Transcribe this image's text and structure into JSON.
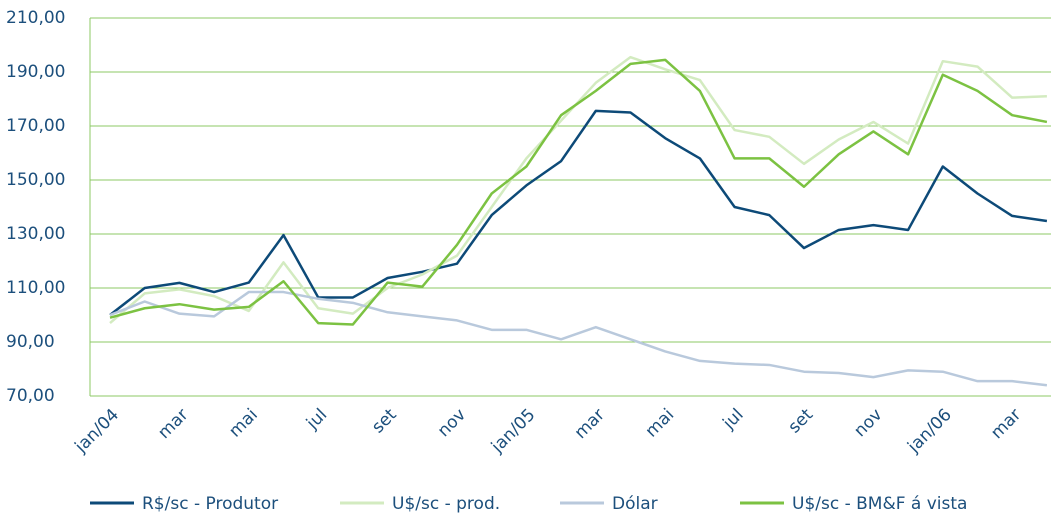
{
  "chart_data": {
    "type": "line",
    "categories": [
      "jan/04",
      null,
      "mar",
      null,
      "mai",
      null,
      "jul",
      null,
      "set",
      null,
      "nov",
      null,
      "jan/05",
      null,
      "mar",
      null,
      "mai",
      null,
      "jul",
      null,
      "set",
      null,
      "nov",
      null,
      "jan/06",
      null,
      "mar",
      null
    ],
    "series": [
      {
        "name": "R$/sc - Produtor",
        "color": "#0d4a78",
        "values": [
          100,
          110,
          111.9,
          108.5,
          112,
          129.6,
          106.5,
          106.5,
          113.7,
          116,
          119,
          137,
          148,
          157,
          175.6,
          175,
          165.5,
          158,
          140,
          137,
          124.8,
          131.5,
          133.3,
          131.5,
          155,
          145,
          136.7,
          134.8
        ]
      },
      {
        "name": "U$/sc - prod.",
        "color": "#d3ebc0",
        "values": [
          97,
          108,
          109.5,
          107,
          101.5,
          119.5,
          102.5,
          100.5,
          110,
          115,
          122,
          140,
          158,
          172,
          186,
          195.5,
          191,
          187,
          168.5,
          166,
          156,
          165,
          171.5,
          163.5,
          194,
          192,
          180.5,
          181
        ]
      },
      {
        "name": "Dólar",
        "color": "#b9c9dc",
        "values": [
          100,
          105,
          100.5,
          99.5,
          108.5,
          108.5,
          106,
          104.5,
          101,
          99.5,
          98,
          94.5,
          94.5,
          91,
          95.5,
          91,
          86.5,
          83,
          82,
          81.5,
          79,
          78.5,
          77,
          79.5,
          79,
          75.5,
          75.5,
          74
        ]
      },
      {
        "name": "U$/sc - BM&F á vista",
        "color": "#7cc242",
        "values": [
          99,
          102.5,
          104,
          102,
          103,
          112.5,
          97,
          96.5,
          112,
          110.5,
          126,
          145,
          155,
          174,
          183,
          193,
          194.5,
          183,
          158,
          158,
          147.5,
          159.5,
          168,
          159.5,
          189,
          183,
          174,
          171.5
        ]
      }
    ],
    "ylim": [
      70,
      210
    ],
    "yticks": [
      {
        "value": 70,
        "label": "70,00"
      },
      {
        "value": 90,
        "label": "90,00"
      },
      {
        "value": 110,
        "label": "110,00"
      },
      {
        "value": 130,
        "label": "130,00"
      },
      {
        "value": 150,
        "label": "150,00"
      },
      {
        "value": 170,
        "label": "170,00"
      },
      {
        "value": 190,
        "label": "190,00"
      },
      {
        "value": 210,
        "label": "210,00"
      }
    ],
    "grid": true
  }
}
